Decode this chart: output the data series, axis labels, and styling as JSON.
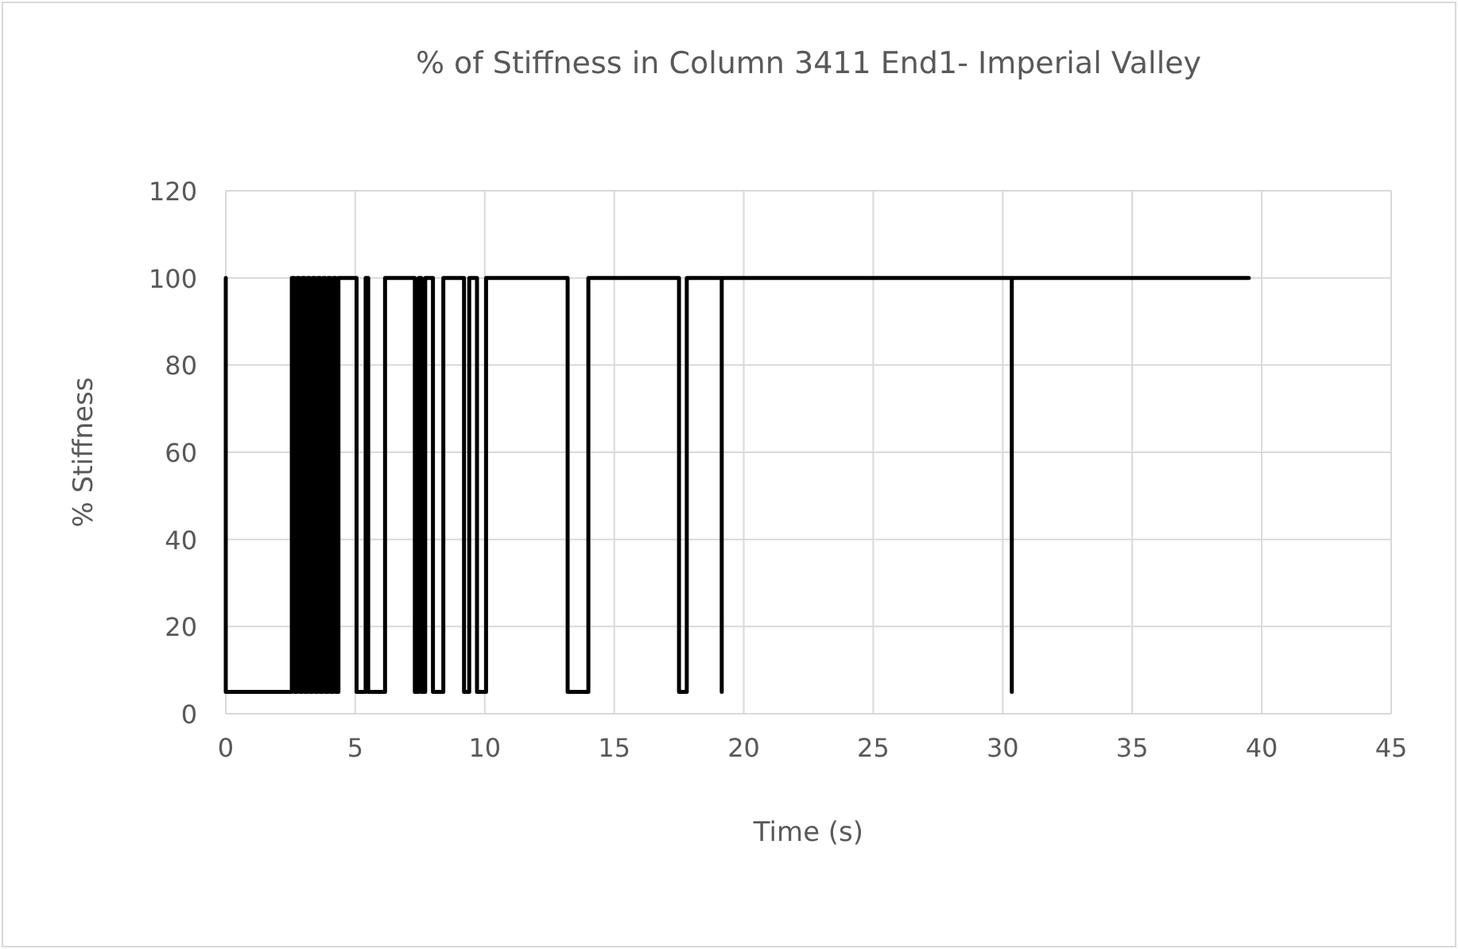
{
  "chart_data": {
    "type": "line",
    "title": "% of Stiffness in Column 3411 End1- Imperial Valley",
    "xlabel": "Time (s)",
    "ylabel": "% Stiffness",
    "x": [
      0,
      0,
      2.55,
      2.55,
      2.65,
      2.65,
      2.75,
      2.75,
      2.85,
      2.85,
      2.95,
      2.95,
      3.05,
      3.05,
      3.15,
      3.15,
      3.25,
      3.25,
      3.35,
      3.35,
      3.45,
      3.45,
      3.55,
      3.55,
      3.65,
      3.65,
      3.75,
      3.75,
      3.85,
      3.85,
      3.95,
      3.95,
      4.05,
      4.05,
      4.15,
      4.15,
      4.25,
      4.25,
      4.35,
      4.35,
      5.05,
      5.05,
      5.4,
      5.4,
      5.5,
      5.5,
      6.15,
      6.15,
      7.3,
      7.3,
      7.45,
      7.45,
      7.55,
      7.55,
      7.7,
      7.7,
      8.0,
      8.0,
      8.4,
      8.4,
      9.2,
      9.2,
      9.4,
      9.4,
      9.7,
      9.7,
      10.05,
      10.05,
      13.2,
      13.2,
      14.0,
      14.0,
      17.5,
      17.5,
      17.8,
      17.8,
      19.15,
      19.15,
      19.15,
      30.35,
      30.35,
      30.35,
      39.5
    ],
    "series": [
      {
        "color": "#000000",
        "values": [
          100,
          5,
          5,
          100,
          100,
          5,
          5,
          100,
          100,
          5,
          5,
          100,
          100,
          5,
          5,
          100,
          100,
          5,
          5,
          100,
          100,
          5,
          5,
          100,
          100,
          5,
          5,
          100,
          100,
          5,
          5,
          100,
          100,
          5,
          5,
          100,
          100,
          5,
          5,
          100,
          100,
          5,
          5,
          100,
          100,
          5,
          5,
          100,
          100,
          5,
          5,
          100,
          100,
          5,
          5,
          100,
          100,
          5,
          5,
          100,
          100,
          5,
          5,
          100,
          100,
          5,
          5,
          100,
          100,
          5,
          5,
          100,
          100,
          5,
          5,
          100,
          100,
          5,
          100,
          100,
          5,
          100,
          100
        ]
      }
    ],
    "xlim": [
      0,
      45
    ],
    "xticks": [
      0,
      5,
      10,
      15,
      20,
      25,
      30,
      35,
      40,
      45
    ],
    "ylim": [
      0,
      120
    ],
    "yticks": [
      0,
      20,
      40,
      60,
      80,
      100,
      120
    ],
    "grid": true,
    "marker": "none",
    "line_style": "solid"
  }
}
